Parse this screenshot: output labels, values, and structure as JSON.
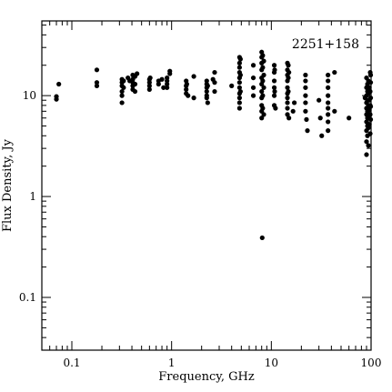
{
  "chart_data": {
    "type": "scatter",
    "title": "2251+158",
    "xlabel": "Frequency, GHz",
    "ylabel": "Flux Density, Jy",
    "x_scale": "log",
    "y_scale": "log",
    "xlim": [
      0.05,
      100
    ],
    "ylim": [
      0.03,
      55
    ],
    "x_ticks": [
      {
        "value": 0.1,
        "label": "0.1"
      },
      {
        "value": 1,
        "label": "1"
      },
      {
        "value": 10,
        "label": "10"
      },
      {
        "value": 100,
        "label": "100"
      }
    ],
    "y_ticks": [
      {
        "value": 0.1,
        "label": "0.1"
      },
      {
        "value": 1,
        "label": "1"
      },
      {
        "value": 10,
        "label": "10"
      }
    ],
    "grid": false,
    "legend": "none",
    "marker_color": "#000000",
    "series": [
      {
        "points": [
          [
            0.07,
            9.8
          ],
          [
            0.07,
            9.2
          ],
          [
            0.074,
            13.0
          ],
          [
            0.178,
            18.0
          ],
          [
            0.178,
            13.5
          ],
          [
            0.178,
            12.5
          ],
          [
            0.318,
            14.5
          ],
          [
            0.318,
            13.5
          ],
          [
            0.318,
            12.5
          ],
          [
            0.318,
            11.0
          ],
          [
            0.318,
            10.0
          ],
          [
            0.318,
            8.5
          ],
          [
            0.33,
            14.0
          ],
          [
            0.33,
            12.0
          ],
          [
            0.365,
            15.0
          ],
          [
            0.38,
            14.0
          ],
          [
            0.408,
            16.0
          ],
          [
            0.408,
            14.5
          ],
          [
            0.408,
            13.5
          ],
          [
            0.408,
            12.5
          ],
          [
            0.408,
            11.5
          ],
          [
            0.43,
            15.5
          ],
          [
            0.43,
            13.0
          ],
          [
            0.43,
            11.0
          ],
          [
            0.45,
            16.5
          ],
          [
            0.6,
            14.5
          ],
          [
            0.6,
            13.5
          ],
          [
            0.6,
            12.5
          ],
          [
            0.6,
            11.5
          ],
          [
            0.61,
            15.0
          ],
          [
            0.74,
            14.0
          ],
          [
            0.74,
            13.0
          ],
          [
            0.8,
            14.5
          ],
          [
            0.83,
            12.0
          ],
          [
            0.9,
            15.0
          ],
          [
            0.9,
            14.0
          ],
          [
            0.9,
            13.0
          ],
          [
            0.9,
            12.0
          ],
          [
            0.96,
            17.5
          ],
          [
            0.96,
            16.5
          ],
          [
            1.4,
            14.0
          ],
          [
            1.4,
            12.5
          ],
          [
            1.4,
            11.5
          ],
          [
            1.4,
            10.5
          ],
          [
            1.42,
            13.0
          ],
          [
            1.46,
            10.0
          ],
          [
            1.67,
            9.5
          ],
          [
            1.67,
            15.5
          ],
          [
            2.25,
            14.0
          ],
          [
            2.25,
            13.0
          ],
          [
            2.25,
            12.0
          ],
          [
            2.25,
            11.0
          ],
          [
            2.25,
            10.0
          ],
          [
            2.25,
            9.5
          ],
          [
            2.3,
            12.5
          ],
          [
            2.3,
            8.5
          ],
          [
            2.6,
            14.5
          ],
          [
            2.7,
            17.0
          ],
          [
            2.7,
            13.5
          ],
          [
            2.7,
            11.0
          ],
          [
            4.0,
            12.5
          ],
          [
            4.8,
            24.0
          ],
          [
            4.8,
            21.0
          ],
          [
            4.8,
            19.0
          ],
          [
            4.8,
            17.0
          ],
          [
            4.8,
            15.0
          ],
          [
            4.8,
            13.5
          ],
          [
            4.8,
            12.0
          ],
          [
            4.8,
            10.5
          ],
          [
            4.8,
            9.5
          ],
          [
            4.8,
            8.5
          ],
          [
            4.8,
            7.5
          ],
          [
            4.9,
            23.0
          ],
          [
            4.9,
            16.0
          ],
          [
            4.9,
            11.0
          ],
          [
            6.6,
            20.0
          ],
          [
            6.6,
            15.0
          ],
          [
            6.6,
            12.0
          ],
          [
            6.6,
            10.0
          ],
          [
            8.0,
            27.0
          ],
          [
            8.0,
            24.0
          ],
          [
            8.0,
            21.0
          ],
          [
            8.0,
            18.0
          ],
          [
            8.0,
            15.0
          ],
          [
            8.0,
            13.0
          ],
          [
            8.0,
            11.0
          ],
          [
            8.0,
            9.5
          ],
          [
            8.0,
            8.0
          ],
          [
            8.0,
            7.0
          ],
          [
            8.0,
            6.0
          ],
          [
            8.2,
            25.0
          ],
          [
            8.2,
            19.0
          ],
          [
            8.2,
            14.0
          ],
          [
            8.2,
            10.0
          ],
          [
            8.2,
            7.5
          ],
          [
            8.4,
            22.0
          ],
          [
            8.4,
            16.0
          ],
          [
            8.4,
            12.0
          ],
          [
            8.4,
            6.5
          ],
          [
            8.1,
            0.39
          ],
          [
            10.7,
            20.0
          ],
          [
            10.7,
            17.0
          ],
          [
            10.7,
            14.0
          ],
          [
            10.7,
            12.0
          ],
          [
            10.7,
            10.0
          ],
          [
            10.7,
            8.0
          ],
          [
            10.8,
            18.0
          ],
          [
            10.8,
            11.0
          ],
          [
            11.0,
            7.5
          ],
          [
            14.5,
            21.0
          ],
          [
            14.5,
            18.0
          ],
          [
            14.5,
            16.0
          ],
          [
            14.5,
            14.0
          ],
          [
            14.5,
            12.0
          ],
          [
            14.5,
            10.5
          ],
          [
            14.5,
            9.5
          ],
          [
            14.5,
            8.5
          ],
          [
            14.5,
            7.5
          ],
          [
            14.5,
            6.5
          ],
          [
            14.8,
            20.0
          ],
          [
            14.8,
            15.0
          ],
          [
            14.8,
            11.0
          ],
          [
            15.0,
            6.0
          ],
          [
            15.0,
            17.0
          ],
          [
            16.5,
            7.0
          ],
          [
            17.0,
            8.5
          ],
          [
            22.0,
            16.0
          ],
          [
            22.0,
            14.0
          ],
          [
            22.0,
            12.0
          ],
          [
            22.0,
            10.0
          ],
          [
            22.0,
            8.5
          ],
          [
            22.0,
            7.0
          ],
          [
            22.5,
            5.8
          ],
          [
            23.0,
            4.5
          ],
          [
            30.0,
            9.0
          ],
          [
            31.0,
            6.0
          ],
          [
            32.0,
            4.0
          ],
          [
            37.0,
            16.0
          ],
          [
            37.0,
            14.0
          ],
          [
            37.0,
            12.0
          ],
          [
            37.0,
            10.0
          ],
          [
            37.0,
            8.5
          ],
          [
            37.0,
            7.5
          ],
          [
            37.0,
            6.5
          ],
          [
            37.0,
            5.5
          ],
          [
            37.0,
            4.5
          ],
          [
            43.0,
            7.0
          ],
          [
            43.0,
            17.0
          ],
          [
            60.0,
            6.0
          ],
          [
            87.0,
            9.5
          ],
          [
            90.0,
            15.0
          ],
          [
            90.0,
            12.0
          ],
          [
            90.0,
            10.0
          ],
          [
            90.0,
            8.5
          ],
          [
            90.0,
            7.5
          ],
          [
            90.0,
            6.5
          ],
          [
            90.0,
            5.5
          ],
          [
            90.0,
            4.5
          ],
          [
            90.0,
            3.5
          ],
          [
            90.0,
            2.6
          ],
          [
            92.0,
            13.0
          ],
          [
            92.0,
            11.0
          ],
          [
            92.0,
            9.0
          ],
          [
            92.0,
            7.0
          ],
          [
            92.0,
            6.0
          ],
          [
            92.0,
            5.0
          ],
          [
            92.0,
            4.0
          ],
          [
            94.0,
            14.0
          ],
          [
            94.0,
            10.5
          ],
          [
            94.0,
            8.0
          ],
          [
            94.0,
            6.2
          ],
          [
            94.0,
            4.8
          ],
          [
            94.0,
            3.2
          ],
          [
            96.0,
            12.0
          ],
          [
            96.0,
            9.0
          ],
          [
            96.0,
            7.2
          ],
          [
            96.0,
            5.2
          ],
          [
            98.0,
            17.0
          ],
          [
            98.0,
            11.0
          ],
          [
            98.0,
            8.0
          ],
          [
            98.0,
            6.5
          ],
          [
            98.0,
            4.2
          ],
          [
            99.0,
            16.0
          ],
          [
            99.0,
            13.5
          ],
          [
            99.0,
            9.5
          ],
          [
            99.0,
            7.8
          ],
          [
            99.0,
            5.8
          ]
        ]
      }
    ]
  }
}
